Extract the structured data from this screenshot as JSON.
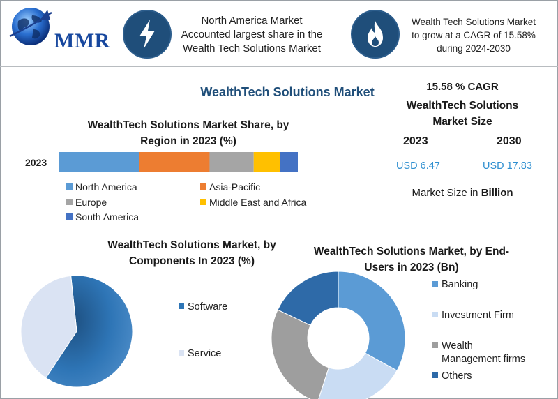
{
  "header": {
    "logo_text": "MMR",
    "callout1": [
      "North America Market",
      "Accounted largest share in the",
      "Wealth Tech Solutions Market"
    ],
    "callout2": [
      "Wealth Tech Solutions Market",
      "to grow at a CAGR of 15.58%",
      "during 2024-2030"
    ],
    "icon1": "lightning-icon",
    "icon2": "flame-icon"
  },
  "main_title": "WealthTech Solutions Market",
  "stats": {
    "cagr": "15.58 % CAGR",
    "label_line1": "WealthTech Solutions",
    "label_line2": "Market Size",
    "year_start": "2023",
    "year_end": "2030",
    "value_start": "USD 6.47",
    "value_end": "USD 17.83",
    "unit_prefix": "Market Size in ",
    "unit_bold": "Billion"
  },
  "chart_data": [
    {
      "type": "bar",
      "orientation": "horizontal-stacked",
      "title_line1": "WealthTech Solutions Market Share, by",
      "title_line2": "Region in 2023 (%)",
      "categories": [
        "2023"
      ],
      "series": [
        {
          "name": "North America",
          "values": [
            33.5
          ],
          "color": "#5b9bd5"
        },
        {
          "name": "Asia-Pacific",
          "values": [
            29.5
          ],
          "color": "#ed7d31"
        },
        {
          "name": "Europe",
          "values": [
            18.5
          ],
          "color": "#a5a5a5"
        },
        {
          "name": "Middle East and Africa",
          "values": [
            11.0
          ],
          "color": "#ffc000"
        },
        {
          "name": "South America",
          "values": [
            7.5
          ],
          "color": "#4472c4"
        }
      ],
      "legend_position": "bottom"
    },
    {
      "type": "pie",
      "title_line1": "WealthTech Solutions Market, by",
      "title_line2": "Components In 2023 (%)",
      "series": [
        {
          "name": "Software",
          "value": 61,
          "color": "#2e75b6"
        },
        {
          "name": "Service",
          "value": 39,
          "color": "#dae3f3"
        }
      ],
      "legend_position": "right"
    },
    {
      "type": "pie",
      "variant": "donut",
      "title_line1": "WealthTech Solutions Market, by End-",
      "title_line2": "Users in 2023 (Bn)",
      "series": [
        {
          "name": "Banking",
          "value": 33,
          "color": "#5b9bd5"
        },
        {
          "name": "Investment Firm",
          "value": 22,
          "color": "#c9dcf3"
        },
        {
          "name": "Wealth Management firms",
          "label_line1": "Wealth",
          "label_line2": "Management firms",
          "value": 27,
          "color": "#9e9e9e"
        },
        {
          "name": "Others",
          "value": 18,
          "color": "#2e6aa8"
        }
      ],
      "legend_position": "right"
    }
  ]
}
